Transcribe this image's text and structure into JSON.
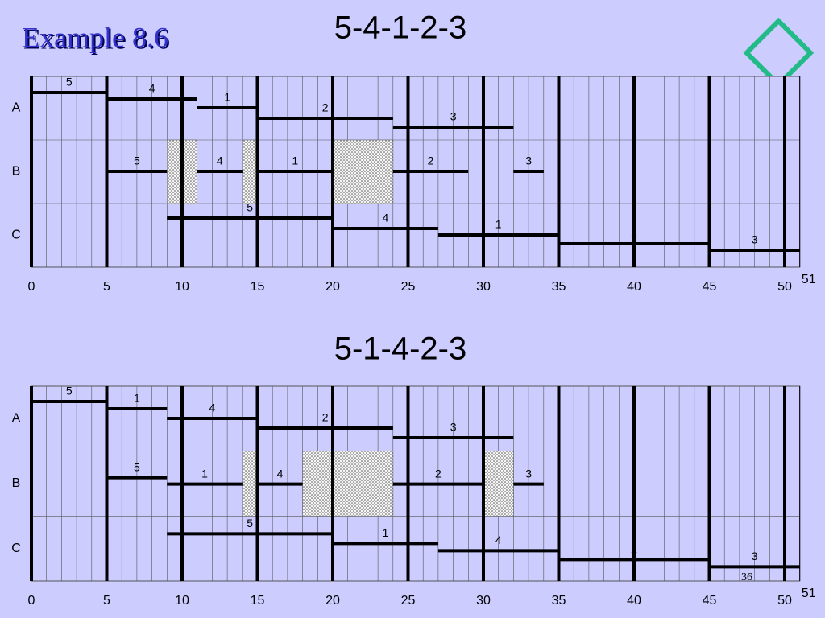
{
  "title": "Example 8.6",
  "chart_data": [
    {
      "type": "gantt",
      "title": "5-4-1-2-3",
      "rows": [
        "A",
        "B",
        "C"
      ],
      "xlim": [
        0,
        51
      ],
      "xticks": [
        0,
        5,
        10,
        15,
        20,
        25,
        30,
        35,
        40,
        45,
        50,
        51
      ],
      "tasks": [
        [
          {
            "label": "5",
            "start": 0,
            "end": 5
          },
          {
            "label": "4",
            "start": 5,
            "end": 11
          },
          {
            "label": "1",
            "start": 11,
            "end": 15
          },
          {
            "label": "2",
            "start": 15,
            "end": 24
          },
          {
            "label": "3",
            "start": 24,
            "end": 32
          }
        ],
        [
          {
            "label": "5",
            "start": 5,
            "end": 9
          },
          {
            "label": "4",
            "start": 11,
            "end": 14
          },
          {
            "label": "1",
            "start": 15,
            "end": 20
          },
          {
            "label": "2",
            "start": 24,
            "end": 29
          },
          {
            "label": "3",
            "start": 32,
            "end": 34
          }
        ],
        [
          {
            "label": "5",
            "start": 9,
            "end": 20
          },
          {
            "label": "4",
            "start": 20,
            "end": 27
          },
          {
            "label": "1",
            "start": 27,
            "end": 35
          },
          {
            "label": "2",
            "start": 35,
            "end": 45
          },
          {
            "label": "3",
            "start": 45,
            "end": 51
          }
        ]
      ],
      "idle": [
        [
          9,
          11
        ],
        [
          14,
          15
        ],
        [
          20,
          24
        ]
      ]
    },
    {
      "type": "gantt",
      "title": "5-1-4-2-3",
      "rows": [
        "A",
        "B",
        "C"
      ],
      "xlim": [
        0,
        51
      ],
      "xticks": [
        0,
        5,
        10,
        15,
        20,
        25,
        30,
        35,
        40,
        45,
        50,
        51
      ],
      "tasks": [
        [
          {
            "label": "5",
            "start": 0,
            "end": 5
          },
          {
            "label": "1",
            "start": 5,
            "end": 9
          },
          {
            "label": "4",
            "start": 9,
            "end": 15
          },
          {
            "label": "2",
            "start": 15,
            "end": 24
          },
          {
            "label": "3",
            "start": 24,
            "end": 32
          }
        ],
        [
          {
            "label": "5",
            "start": 5,
            "end": 9
          },
          {
            "label": "1",
            "start": 9,
            "end": 14
          },
          {
            "label": "4",
            "start": 15,
            "end": 18
          },
          {
            "label": "2",
            "start": 24,
            "end": 30
          },
          {
            "label": "3",
            "start": 32,
            "end": 34
          }
        ],
        [
          {
            "label": "5",
            "start": 9,
            "end": 20
          },
          {
            "label": "1",
            "start": 20,
            "end": 27
          },
          {
            "label": "4",
            "start": 27,
            "end": 35
          },
          {
            "label": "2",
            "start": 35,
            "end": 45
          },
          {
            "label": "3",
            "start": 45,
            "end": 51
          }
        ]
      ],
      "idle": [
        [
          14,
          15
        ],
        [
          18,
          24
        ],
        [
          30,
          32
        ]
      ],
      "annotation": "36"
    }
  ]
}
